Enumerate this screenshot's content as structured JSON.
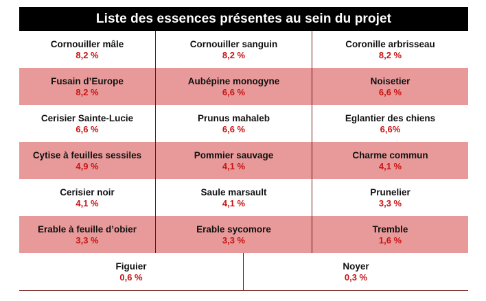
{
  "title": "Liste des essences présentes au sein du projet",
  "rows": [
    [
      {
        "name": "Cornouiller mâle",
        "pct": "8,2 %"
      },
      {
        "name": "Cornouiller sanguin",
        "pct": "8,2 %"
      },
      {
        "name": "Coronille arbrisseau",
        "pct": "8,2 %"
      }
    ],
    [
      {
        "name": "Fusain d’Europe",
        "pct": "8,2 %"
      },
      {
        "name": "Aubépine monogyne",
        "pct": "6,6 %"
      },
      {
        "name": "Noisetier",
        "pct": "6,6 %"
      }
    ],
    [
      {
        "name": "Cerisier Sainte-Lucie",
        "pct": "6,6 %"
      },
      {
        "name": "Prunus mahaleb",
        "pct": "6,6 %"
      },
      {
        "name": "Eglantier des chiens",
        "pct": "6,6%"
      }
    ],
    [
      {
        "name": "Cytise à feuilles sessiles",
        "pct": "4,9 %"
      },
      {
        "name": "Pommier sauvage",
        "pct": "4,1 %"
      },
      {
        "name": "Charme commun",
        "pct": "4,1 %"
      }
    ],
    [
      {
        "name": "Cerisier noir",
        "pct": "4,1 %"
      },
      {
        "name": "Saule marsault",
        "pct": "4,1 %"
      },
      {
        "name": "Prunelier",
        "pct": "3,3 %"
      }
    ],
    [
      {
        "name": "Erable à feuille d’obier",
        "pct": "3,3 %"
      },
      {
        "name": "Erable sycomore",
        "pct": "3,3 %"
      },
      {
        "name": "Tremble",
        "pct": "1,6 %"
      }
    ]
  ],
  "last_row": [
    {
      "name": "Figuier",
      "pct": "0,6 %"
    },
    {
      "name": "Noyer",
      "pct": "0,3 %"
    }
  ],
  "colors": {
    "header_bg": "#000000",
    "shaded_row": "#e89a9a",
    "percent_text": "#c81414"
  }
}
